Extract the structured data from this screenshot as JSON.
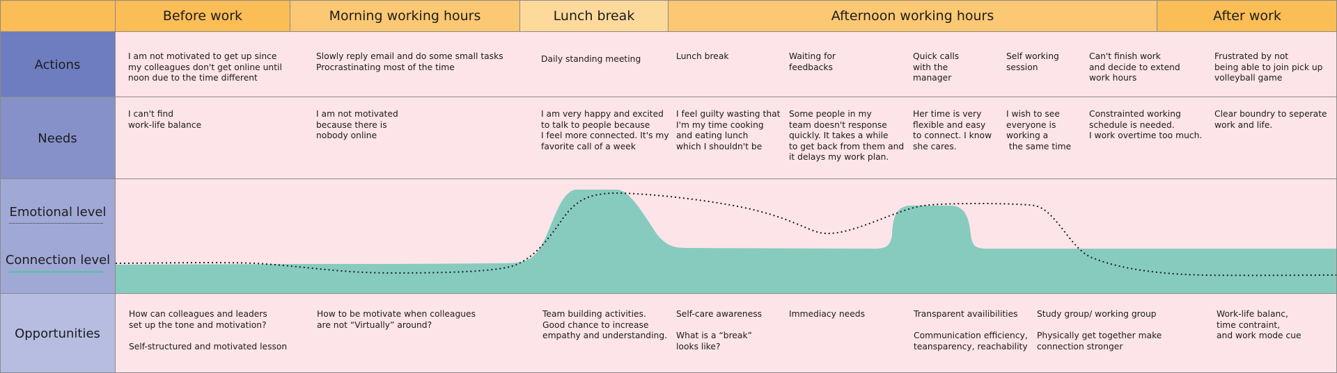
{
  "phases": [
    {
      "label": "Before work",
      "color": "#fbbd56"
    },
    {
      "label": "Morning working hours",
      "color": "#fcc873"
    },
    {
      "label": "Lunch break",
      "color": "#fdd99c"
    },
    {
      "label": "Afternoon working hours",
      "color": "#fcc873"
    },
    {
      "label": "After work",
      "color": "#fbbd56"
    }
  ],
  "rows": {
    "actions": "Actions",
    "needs": "Needs",
    "emotional": "Emotional level",
    "connection": "Connection level",
    "opportunities": "Opportunities"
  },
  "actions": [
    "I am not motivated to get up since\nmy colleagues don't get online until\nnoon due to the time different",
    "Slowly reply email and do some small tasks\nProcrastinating most of the time",
    "Daily standing meeting",
    "Lunch break",
    "Waiting for\nfeedbacks",
    "Quick calls\nwith the\nmanager",
    "Self working\nsession",
    "Can't finish work\nand decide to extend\nwork hours",
    "Frustrated by not\nbeing able to join pick up\nvolleyball game"
  ],
  "needs": [
    "I can't find\nwork-life balance",
    "I am not motivated\nbecause there is\nnobody online",
    "I am very happy and excited\nto talk to people because\nI feel more connected. It's my\nfavorite call of a week",
    "I feel guilty wasting that\nI'm my time cooking\nand eating lunch\nwhich I shouldn't be",
    "Some people in my\nteam doesn't response\nquickly. It takes a while\nto get back from them and\nit delays my work plan.",
    "Her time is very\nflexible and easy\nto connect. I know\nshe cares.",
    "I wish to see\neveryone is\nworking a\n the same time",
    "Constrainted working\nschedule is needed.\nI work overtime too much.",
    "Clear boundry to seperate\nwork and life."
  ],
  "opportunities": [
    "How can colleagues and leaders\nset up the tone and motivation?\n\nSelf-structured and motivated lesson",
    "How to be motivate when colleagues\nare not “Virtually” around?",
    "Team building activities.\nGood chance to increase\nempathy and understanding.",
    "Self-care awareness\n\nWhat is a “break”\nlooks like?",
    "Immediacy needs",
    "Transparent availibilities\n\nCommunication efficiency,\nteansparency, reachability",
    "Study group/ working group\n\nPhysically get together make\nconnection stronger",
    "Work-life balanc,\ntime contraint,\nand work mode cue"
  ],
  "colors": {
    "actions_side": "#6e7dc0",
    "needs_side": "#8690c9",
    "emotion_side": "#a0a8d6",
    "opps_side": "#b6bde1",
    "connection_fill": "#87cbbf",
    "emotion_line": "#1a1a1a"
  }
}
